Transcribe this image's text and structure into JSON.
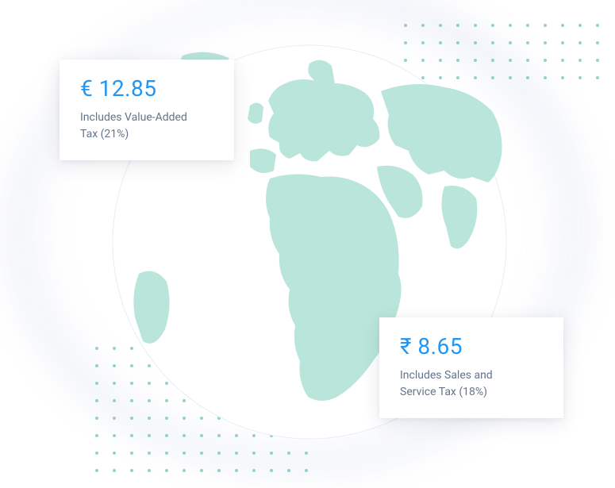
{
  "globe": {
    "ocean_color": "#ffffff",
    "land_color": "#b9e5da",
    "outline_color": "#d8e3f0"
  },
  "dots": {
    "color": "#4db6ac"
  },
  "cards": {
    "euro": {
      "price": "€ 12.85",
      "desc_line1": "Includes Value-Added",
      "desc_line2": "Tax (21%)"
    },
    "rupee": {
      "price": "₹ 8.65",
      "desc_line1": "Includes Sales and",
      "desc_line2": "Service Tax (18%)"
    }
  },
  "colors": {
    "price_text": "#2196f3",
    "desc_text": "#64748b",
    "card_bg": "#ffffff"
  },
  "typography": {
    "price_fontsize": 28,
    "desc_fontsize": 14
  }
}
